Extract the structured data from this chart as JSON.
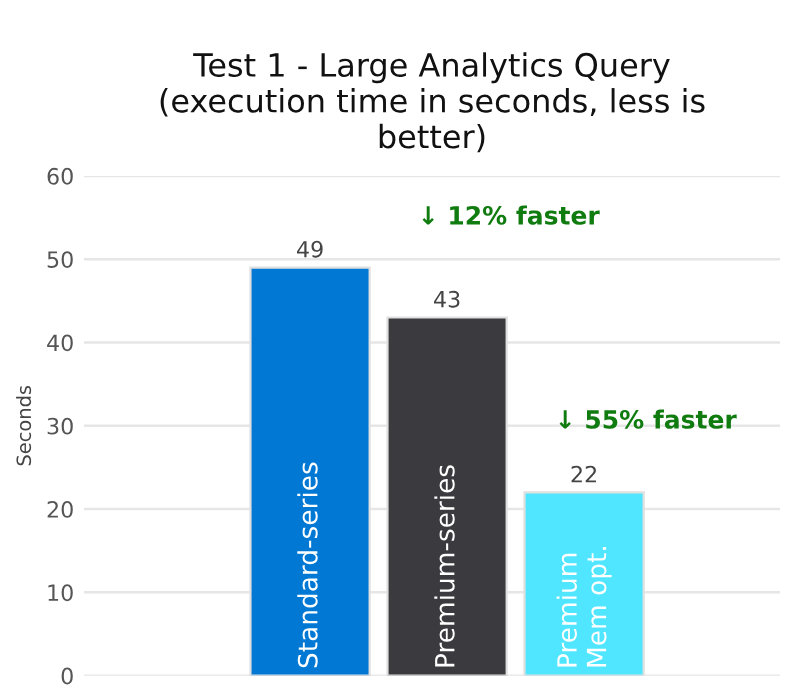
{
  "chart_data": {
    "type": "bar",
    "title": "Test 1 - Large Analytics Query\n(execution time in seconds, less is\nbetter)",
    "ylabel": "Seconds",
    "categories": [
      "Standard-series",
      "Premium-series",
      "Premium\nMem opt."
    ],
    "values": [
      49,
      43,
      22
    ],
    "colors": [
      "#0078d4",
      "#3b3a3f",
      "#50e6ff"
    ],
    "data_labels": true,
    "ylim": [
      0,
      60
    ],
    "yticks": [
      0,
      10,
      20,
      30,
      40,
      50,
      60
    ],
    "grid": "y",
    "legend": false,
    "annotations": [
      "↓ 12% faster",
      "↓ 55% faster"
    ]
  }
}
